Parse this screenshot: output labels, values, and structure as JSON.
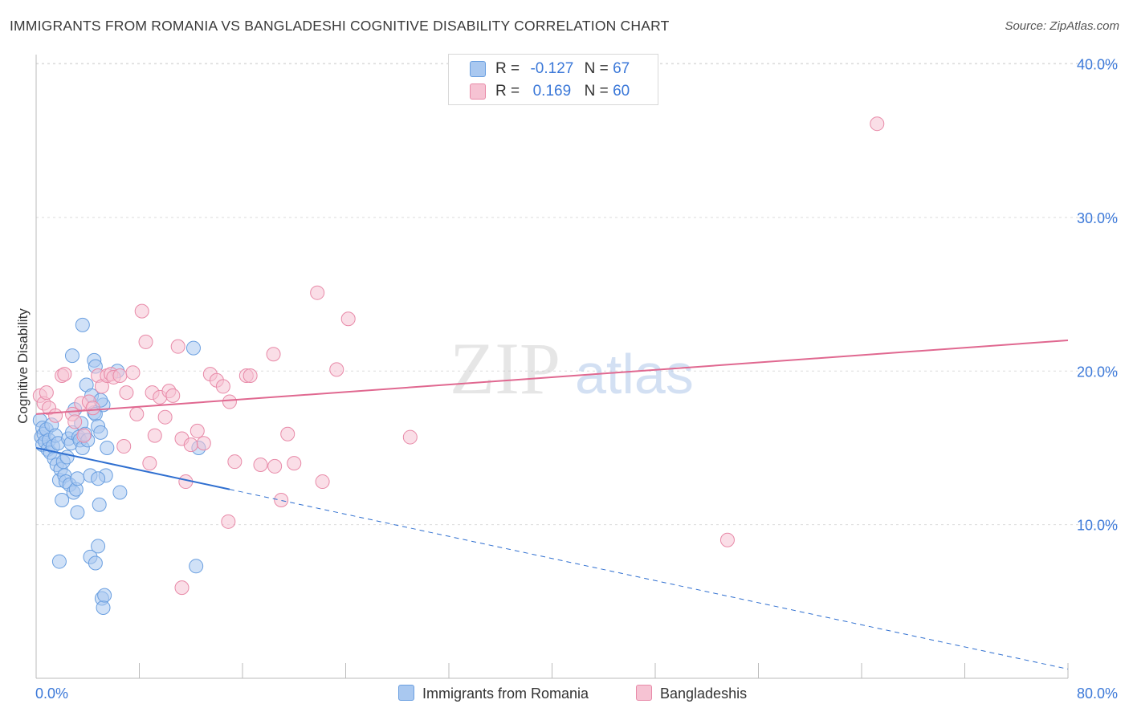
{
  "title": "IMMIGRANTS FROM ROMANIA VS BANGLADESHI COGNITIVE DISABILITY CORRELATION CHART",
  "source": "Source: ZipAtlas.com",
  "watermark": {
    "bold": "ZIP",
    "light": "atlas"
  },
  "legend": {
    "r_label": "R =",
    "n_label": "N =",
    "rows": [
      {
        "r": "-0.127",
        "n": "67"
      },
      {
        "r": "0.169",
        "n": "60"
      }
    ]
  },
  "colors": {
    "blue_fill": "#a9c8f0",
    "blue_stroke": "#6a9fe0",
    "blue_line": "#2f6fd0",
    "pink_fill": "#f6c3d3",
    "pink_stroke": "#e88aa8",
    "pink_line": "#e06890",
    "tick_label": "#3b78d8"
  },
  "chart_data": {
    "type": "scatter",
    "title": "IMMIGRANTS FROM ROMANIA VS BANGLADESHI COGNITIVE DISABILITY CORRELATION CHART",
    "xlabel": "",
    "ylabel": "Cognitive Disability",
    "xlim": [
      0,
      80
    ],
    "ylim": [
      0,
      40.5
    ],
    "x_tick_labels": [
      "0.0%",
      "80.0%"
    ],
    "y_ticks": [
      10,
      20,
      30,
      40
    ],
    "y_tick_labels": [
      "10.0%",
      "20.0%",
      "30.0%",
      "40.0%"
    ],
    "grid": true,
    "series": [
      {
        "name": "Immigrants from Romania",
        "r": -0.127,
        "n": 67,
        "trend": {
          "x0": 0,
          "y0": 15.0,
          "x1": 15.0,
          "y1": 12.3,
          "dashed_to_x": 80,
          "dashed_to_y": 0.6
        },
        "points": [
          [
            0.3,
            16.8
          ],
          [
            0.4,
            15.7
          ],
          [
            0.5,
            16.3
          ],
          [
            0.5,
            15.2
          ],
          [
            0.6,
            15.9
          ],
          [
            0.7,
            15.4
          ],
          [
            0.8,
            16.2
          ],
          [
            0.9,
            14.9
          ],
          [
            1.0,
            15.5
          ],
          [
            1.1,
            14.7
          ],
          [
            1.2,
            16.5
          ],
          [
            1.3,
            15.1
          ],
          [
            1.4,
            14.3
          ],
          [
            1.5,
            15.8
          ],
          [
            1.6,
            13.9
          ],
          [
            1.7,
            15.3
          ],
          [
            1.8,
            12.9
          ],
          [
            1.9,
            13.6
          ],
          [
            2.0,
            11.6
          ],
          [
            2.1,
            14.1
          ],
          [
            2.2,
            13.2
          ],
          [
            2.3,
            12.8
          ],
          [
            2.4,
            14.4
          ],
          [
            2.5,
            15.6
          ],
          [
            2.6,
            12.6
          ],
          [
            2.7,
            15.3
          ],
          [
            2.8,
            16.0
          ],
          [
            2.9,
            12.1
          ],
          [
            3.0,
            17.5
          ],
          [
            3.1,
            12.3
          ],
          [
            3.2,
            13.0
          ],
          [
            3.3,
            15.7
          ],
          [
            3.4,
            15.5
          ],
          [
            3.5,
            16.6
          ],
          [
            3.6,
            15.0
          ],
          [
            3.8,
            15.9
          ],
          [
            3.9,
            19.1
          ],
          [
            4.0,
            15.5
          ],
          [
            4.2,
            13.2
          ],
          [
            4.3,
            18.4
          ],
          [
            4.5,
            17.3
          ],
          [
            4.6,
            17.2
          ],
          [
            4.8,
            16.4
          ],
          [
            5.0,
            16.0
          ],
          [
            5.2,
            17.8
          ],
          [
            5.4,
            13.2
          ],
          [
            5.5,
            15.0
          ],
          [
            4.8,
            13.0
          ],
          [
            1.8,
            7.6
          ],
          [
            4.2,
            7.9
          ],
          [
            4.6,
            7.5
          ],
          [
            4.8,
            8.6
          ],
          [
            5.1,
            5.2
          ],
          [
            5.2,
            4.6
          ],
          [
            5.3,
            5.4
          ],
          [
            3.2,
            10.8
          ],
          [
            4.9,
            11.3
          ],
          [
            6.5,
            12.1
          ],
          [
            2.8,
            21.0
          ],
          [
            4.5,
            20.7
          ],
          [
            4.6,
            20.3
          ],
          [
            6.3,
            20.0
          ],
          [
            5.0,
            18.1
          ],
          [
            3.6,
            23.0
          ],
          [
            12.2,
            21.5
          ],
          [
            12.6,
            15.0
          ],
          [
            12.4,
            7.3
          ]
        ]
      },
      {
        "name": "Bangladeshis",
        "r": 0.169,
        "n": 60,
        "trend": {
          "x0": 0,
          "y0": 17.2,
          "x1": 80,
          "y1": 22.0
        },
        "points": [
          [
            0.3,
            18.4
          ],
          [
            0.6,
            17.9
          ],
          [
            0.8,
            18.6
          ],
          [
            1.0,
            17.6
          ],
          [
            1.5,
            17.1
          ],
          [
            2.0,
            19.7
          ],
          [
            2.2,
            19.8
          ],
          [
            2.8,
            17.2
          ],
          [
            3.0,
            16.7
          ],
          [
            3.5,
            17.9
          ],
          [
            4.1,
            18.0
          ],
          [
            4.4,
            17.6
          ],
          [
            4.8,
            19.7
          ],
          [
            5.1,
            19.0
          ],
          [
            5.5,
            19.7
          ],
          [
            5.8,
            19.8
          ],
          [
            6.0,
            19.6
          ],
          [
            6.5,
            19.7
          ],
          [
            7.0,
            18.6
          ],
          [
            7.5,
            19.9
          ],
          [
            7.8,
            17.2
          ],
          [
            8.2,
            23.9
          ],
          [
            8.5,
            21.9
          ],
          [
            9.0,
            18.6
          ],
          [
            9.2,
            15.8
          ],
          [
            9.6,
            18.3
          ],
          [
            10.0,
            17.0
          ],
          [
            10.3,
            18.7
          ],
          [
            10.6,
            18.4
          ],
          [
            11.0,
            21.6
          ],
          [
            11.3,
            15.6
          ],
          [
            11.6,
            12.8
          ],
          [
            12.0,
            15.2
          ],
          [
            12.5,
            16.1
          ],
          [
            13.0,
            15.3
          ],
          [
            13.5,
            19.8
          ],
          [
            14.0,
            19.4
          ],
          [
            14.5,
            19.0
          ],
          [
            15.0,
            18.0
          ],
          [
            15.4,
            14.1
          ],
          [
            16.3,
            19.7
          ],
          [
            16.6,
            19.7
          ],
          [
            18.4,
            21.1
          ],
          [
            18.5,
            13.8
          ],
          [
            19.0,
            11.6
          ],
          [
            19.5,
            15.9
          ],
          [
            20.0,
            14.0
          ],
          [
            21.8,
            25.1
          ],
          [
            22.2,
            12.8
          ],
          [
            23.3,
            20.1
          ],
          [
            24.2,
            23.4
          ],
          [
            29.0,
            15.7
          ],
          [
            6.8,
            15.1
          ],
          [
            8.8,
            14.0
          ],
          [
            14.9,
            10.2
          ],
          [
            11.3,
            5.9
          ],
          [
            53.6,
            9.0
          ],
          [
            65.2,
            36.1
          ],
          [
            3.7,
            15.8
          ],
          [
            17.4,
            13.9
          ]
        ]
      }
    ]
  },
  "bottom_legend": [
    "Immigrants from Romania",
    "Bangladeshis"
  ]
}
